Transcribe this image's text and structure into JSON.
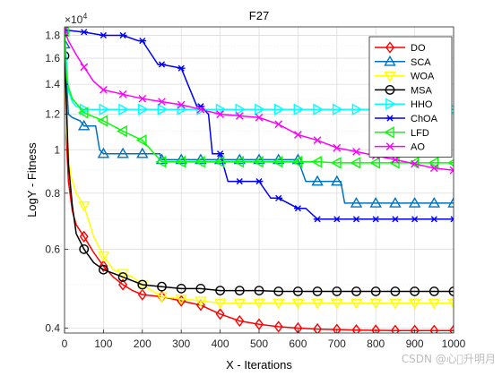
{
  "watermark": "CSDN @心\u0000升明月",
  "chart_data": {
    "type": "line",
    "title": "F27",
    "xlabel": "X - Iterations",
    "ylabel": "LogY - Fitness",
    "exponent_label": "×10",
    "exponent_power": "4",
    "y_scale": "log",
    "xlim": [
      0,
      1000
    ],
    "ylim": [
      3900,
      18800
    ],
    "xticks": [
      0,
      100,
      200,
      300,
      400,
      500,
      600,
      700,
      800,
      900,
      1000
    ],
    "yticks": [
      {
        "value": 4000,
        "label": "0.4"
      },
      {
        "value": 6000,
        "label": "0.6"
      },
      {
        "value": 8000,
        "label": "0.8"
      },
      {
        "value": 10000,
        "label": "1"
      },
      {
        "value": 12000,
        "label": "1.2"
      },
      {
        "value": 14000,
        "label": "1.4"
      },
      {
        "value": 16000,
        "label": "1.6"
      },
      {
        "value": 18000,
        "label": "1.8"
      }
    ],
    "grid": true,
    "legend_position": "top-right",
    "series": [
      {
        "name": "DO",
        "color": "#ff0000",
        "marker": "diamond",
        "x": [
          0,
          5,
          10,
          20,
          30,
          50,
          75,
          100,
          125,
          150,
          175,
          200,
          250,
          300,
          350,
          400,
          450,
          500,
          550,
          600,
          650,
          700,
          750,
          800,
          850,
          900,
          950,
          1000
        ],
        "y": [
          18200,
          10500,
          8500,
          7300,
          6800,
          6400,
          5900,
          5500,
          5200,
          5000,
          4850,
          4750,
          4700,
          4600,
          4500,
          4300,
          4150,
          4080,
          4030,
          4000,
          3980,
          3970,
          3960,
          3955,
          3950,
          3950,
          3950,
          3950
        ]
      },
      {
        "name": "SCA",
        "color": "#0072bd",
        "marker": "triangle-up",
        "x": [
          0,
          10,
          20,
          40,
          50,
          80,
          90,
          100,
          150,
          200,
          245,
          250,
          300,
          350,
          400,
          450,
          500,
          550,
          600,
          620,
          650,
          700,
          710,
          720,
          750,
          800,
          850,
          900,
          950,
          1000
        ],
        "y": [
          17200,
          12000,
          11800,
          11600,
          11300,
          11300,
          10000,
          9800,
          9800,
          9800,
          9800,
          9500,
          9500,
          9500,
          9500,
          9500,
          9500,
          9500,
          9500,
          8500,
          8500,
          8500,
          8500,
          7600,
          7600,
          7600,
          7600,
          7600,
          7600,
          7600
        ]
      },
      {
        "name": "WOA",
        "color": "#ffff00",
        "marker": "triangle-down",
        "x": [
          0,
          5,
          15,
          30,
          50,
          75,
          100,
          125,
          150,
          175,
          200,
          250,
          300,
          350,
          400,
          450,
          500,
          550,
          600,
          650,
          700,
          750,
          800,
          850,
          900,
          950,
          1000
        ],
        "y": [
          18500,
          11000,
          8800,
          8000,
          7500,
          6400,
          5800,
          5400,
          5300,
          5200,
          5000,
          4700,
          4650,
          4600,
          4550,
          4550,
          4550,
          4550,
          4550,
          4550,
          4550,
          4550,
          4550,
          4550,
          4550,
          4550,
          4550
        ]
      },
      {
        "name": "MSA",
        "color": "#000000",
        "marker": "circle",
        "x": [
          0,
          5,
          10,
          20,
          30,
          50,
          75,
          100,
          125,
          150,
          175,
          200,
          250,
          300,
          350,
          400,
          450,
          500,
          550,
          600,
          650,
          700,
          750,
          800,
          850,
          900,
          950,
          1000
        ],
        "y": [
          16200,
          12500,
          9300,
          7500,
          6500,
          6000,
          5600,
          5400,
          5300,
          5200,
          5100,
          5000,
          4950,
          4900,
          4900,
          4850,
          4850,
          4850,
          4830,
          4830,
          4830,
          4830,
          4830,
          4830,
          4830,
          4830,
          4830,
          4830
        ]
      },
      {
        "name": "HHO",
        "color": "#00ffff",
        "marker": "triangle-right",
        "x": [
          0,
          10,
          20,
          30,
          50,
          100,
          150,
          200,
          250,
          300,
          350,
          400,
          450,
          500,
          550,
          600,
          650,
          700,
          750,
          800,
          850,
          900,
          950,
          1000
        ],
        "y": [
          18300,
          13500,
          12800,
          12500,
          12300,
          12300,
          12300,
          12300,
          12300,
          12300,
          12300,
          12300,
          12300,
          12300,
          12300,
          12300,
          12300,
          12300,
          12300,
          12300,
          12300,
          12300,
          12300,
          12300
        ]
      },
      {
        "name": "ChOA",
        "color": "#0000ff",
        "marker": "asterisk",
        "x": [
          0,
          50,
          100,
          150,
          190,
          200,
          240,
          250,
          300,
          340,
          350,
          370,
          380,
          400,
          420,
          450,
          500,
          530,
          550,
          600,
          620,
          650,
          700,
          750,
          800,
          850,
          900,
          950,
          1000
        ],
        "y": [
          18500,
          18300,
          18000,
          18000,
          17500,
          17500,
          15500,
          15500,
          15200,
          12500,
          12500,
          12000,
          9800,
          9800,
          8500,
          8500,
          8500,
          7800,
          7800,
          7400,
          7400,
          7000,
          7000,
          7000,
          7000,
          7000,
          7000,
          7000,
          7000
        ]
      },
      {
        "name": "LFD",
        "color": "#00ff00",
        "marker": "triangle-left",
        "x": [
          0,
          5,
          10,
          20,
          40,
          50,
          80,
          100,
          150,
          200,
          250,
          300,
          350,
          400,
          450,
          500,
          550,
          600,
          650,
          700,
          750,
          800,
          850,
          900,
          950,
          1000
        ],
        "y": [
          18400,
          14500,
          13800,
          13000,
          12400,
          12100,
          11800,
          11600,
          11000,
          10500,
          9400,
          9400,
          9400,
          9400,
          9400,
          9400,
          9400,
          9400,
          9400,
          9350,
          9350,
          9350,
          9350,
          9350,
          9350,
          9350
        ]
      },
      {
        "name": "AO",
        "color": "#ff00ff",
        "marker": "x",
        "x": [
          0,
          10,
          30,
          50,
          75,
          100,
          150,
          200,
          250,
          300,
          350,
          400,
          450,
          500,
          550,
          600,
          650,
          700,
          750,
          800,
          850,
          900,
          950,
          1000
        ],
        "y": [
          18500,
          17500,
          16300,
          15300,
          14200,
          13600,
          13300,
          13000,
          12800,
          12600,
          12300,
          12000,
          11900,
          11800,
          11400,
          10800,
          10500,
          10100,
          9900,
          9700,
          9500,
          9300,
          9100,
          9000
        ]
      }
    ]
  }
}
